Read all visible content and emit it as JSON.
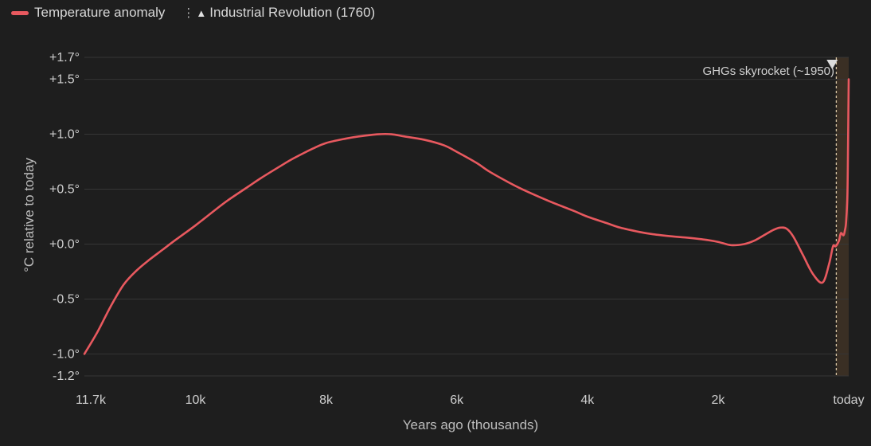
{
  "colors": {
    "background": "#1e1e1e",
    "series": "#e8595f",
    "grid": "#363636",
    "highlight_band": "#3a2f24",
    "marker_line": "#d9c7a5"
  },
  "legend": {
    "series_label": "Temperature anomaly",
    "marker_label": "Industrial Revolution (1760)",
    "marker_glyph": "▲",
    "separator_glyph": "⋮"
  },
  "chart_data": {
    "type": "line",
    "title": "",
    "xlabel": "Years ago (thousands)",
    "ylabel": "°C relative to today",
    "xlim": [
      11.7,
      0
    ],
    "ylim": [
      -1.2,
      1.7
    ],
    "x_ticks": [
      {
        "value": 11.7,
        "label": "11.7k"
      },
      {
        "value": 10,
        "label": "10k"
      },
      {
        "value": 8,
        "label": "8k"
      },
      {
        "value": 6,
        "label": "6k"
      },
      {
        "value": 4,
        "label": "4k"
      },
      {
        "value": 2,
        "label": "2k"
      },
      {
        "value": 0,
        "label": "today"
      }
    ],
    "y_ticks": [
      {
        "value": 1.7,
        "label": "+1.7°"
      },
      {
        "value": 1.5,
        "label": "+1.5°"
      },
      {
        "value": 1.0,
        "label": "+1.0°"
      },
      {
        "value": 0.5,
        "label": "+0.5°"
      },
      {
        "value": 0.0,
        "label": "+0.0°"
      },
      {
        "value": -0.5,
        "label": "-0.5°"
      },
      {
        "value": -1.0,
        "label": "-1.0°"
      },
      {
        "value": -1.2,
        "label": "-1.2°"
      }
    ],
    "grid": true,
    "legend_position": "top-left",
    "series": [
      {
        "name": "Temperature anomaly",
        "x": [
          11.7,
          11.5,
          11.3,
          11.1,
          10.9,
          10.7,
          10.5,
          10.3,
          10.0,
          9.7,
          9.5,
          9.2,
          9.0,
          8.7,
          8.5,
          8.2,
          8.0,
          7.7,
          7.5,
          7.2,
          7.0,
          6.8,
          6.5,
          6.2,
          6.0,
          5.7,
          5.5,
          5.2,
          5.0,
          4.7,
          4.5,
          4.2,
          4.0,
          3.7,
          3.5,
          3.2,
          3.0,
          2.7,
          2.5,
          2.2,
          2.0,
          1.8,
          1.6,
          1.45,
          1.3,
          1.15,
          1.05,
          0.95,
          0.85,
          0.7,
          0.55,
          0.4,
          0.3,
          0.24,
          0.2,
          0.15,
          0.12,
          0.08,
          0.06,
          0.04,
          0.02,
          0.01,
          0.0
        ],
        "values": [
          -1.0,
          -0.8,
          -0.57,
          -0.37,
          -0.24,
          -0.14,
          -0.05,
          0.04,
          0.17,
          0.31,
          0.4,
          0.52,
          0.6,
          0.71,
          0.78,
          0.87,
          0.92,
          0.96,
          0.98,
          1.0,
          1.0,
          0.98,
          0.95,
          0.9,
          0.84,
          0.74,
          0.66,
          0.56,
          0.5,
          0.42,
          0.37,
          0.3,
          0.25,
          0.19,
          0.15,
          0.11,
          0.09,
          0.07,
          0.06,
          0.04,
          0.02,
          -0.01,
          0.0,
          0.03,
          0.08,
          0.13,
          0.15,
          0.14,
          0.07,
          -0.1,
          -0.27,
          -0.35,
          -0.18,
          -0.02,
          -0.02,
          0.03,
          0.1,
          0.08,
          0.12,
          0.2,
          0.45,
          0.9,
          1.5
        ]
      }
    ],
    "annotations": [
      {
        "x": 0.19,
        "label": "Industrial Revolution (1760)"
      },
      {
        "x": 0.07,
        "label": "GHGs skyrocket (~1950)"
      }
    ]
  }
}
